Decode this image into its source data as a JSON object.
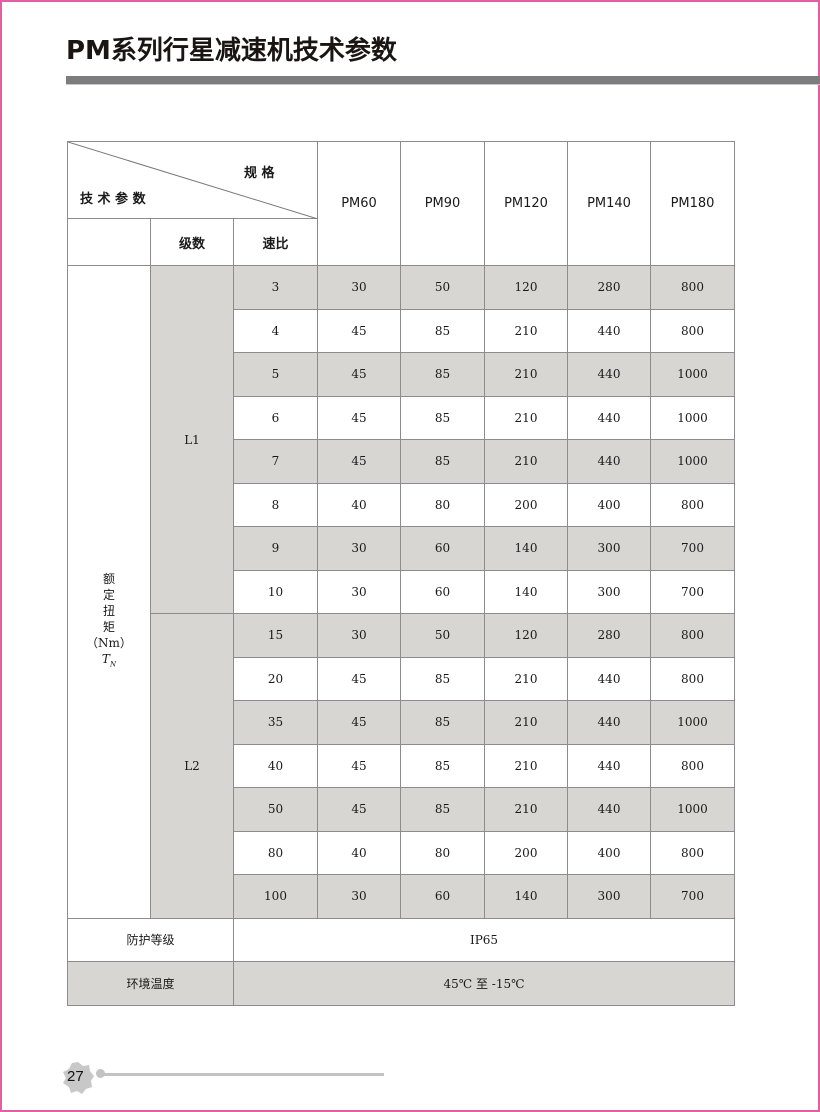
{
  "page_title": "PM系列行星减速机技术参数",
  "header": {
    "spec_label": "规 格",
    "param_label": "技 术 参 数",
    "stage_label": "级数",
    "ratio_label": "速比",
    "models": [
      "PM60",
      "PM90",
      "PM120",
      "PM140",
      "PM180"
    ]
  },
  "torque_label": {
    "line1": "额",
    "line2": "定",
    "line3": "扭",
    "line4": "矩",
    "unit": "（Nm）",
    "symbol": "T",
    "subscript": "N"
  },
  "groups": [
    {
      "stage": "L1",
      "rows": [
        {
          "ratio": "3",
          "values": [
            "30",
            "50",
            "120",
            "280",
            "800"
          ]
        },
        {
          "ratio": "4",
          "values": [
            "45",
            "85",
            "210",
            "440",
            "800"
          ]
        },
        {
          "ratio": "5",
          "values": [
            "45",
            "85",
            "210",
            "440",
            "1000"
          ]
        },
        {
          "ratio": "6",
          "values": [
            "45",
            "85",
            "210",
            "440",
            "1000"
          ]
        },
        {
          "ratio": "7",
          "values": [
            "45",
            "85",
            "210",
            "440",
            "1000"
          ]
        },
        {
          "ratio": "8",
          "values": [
            "40",
            "80",
            "200",
            "400",
            "800"
          ]
        },
        {
          "ratio": "9",
          "values": [
            "30",
            "60",
            "140",
            "300",
            "700"
          ]
        },
        {
          "ratio": "10",
          "values": [
            "30",
            "60",
            "140",
            "300",
            "700"
          ]
        }
      ]
    },
    {
      "stage": "L2",
      "rows": [
        {
          "ratio": "15",
          "values": [
            "30",
            "50",
            "120",
            "280",
            "800"
          ]
        },
        {
          "ratio": "20",
          "values": [
            "45",
            "85",
            "210",
            "440",
            "800"
          ]
        },
        {
          "ratio": "35",
          "values": [
            "45",
            "85",
            "210",
            "440",
            "1000"
          ]
        },
        {
          "ratio": "40",
          "values": [
            "45",
            "85",
            "210",
            "440",
            "800"
          ]
        },
        {
          "ratio": "50",
          "values": [
            "45",
            "85",
            "210",
            "440",
            "1000"
          ]
        },
        {
          "ratio": "80",
          "values": [
            "40",
            "80",
            "200",
            "400",
            "800"
          ]
        },
        {
          "ratio": "100",
          "values": [
            "30",
            "60",
            "140",
            "300",
            "700"
          ]
        }
      ]
    }
  ],
  "protection": {
    "label": "防护等级",
    "value": "IP65"
  },
  "temperature": {
    "label": "环境温度",
    "value": "45℃ 至 -15℃"
  },
  "page_number": "27",
  "colors": {
    "shade": "#d8d6d2",
    "rule": "#7d7d7f",
    "border": "#e25fa3"
  }
}
